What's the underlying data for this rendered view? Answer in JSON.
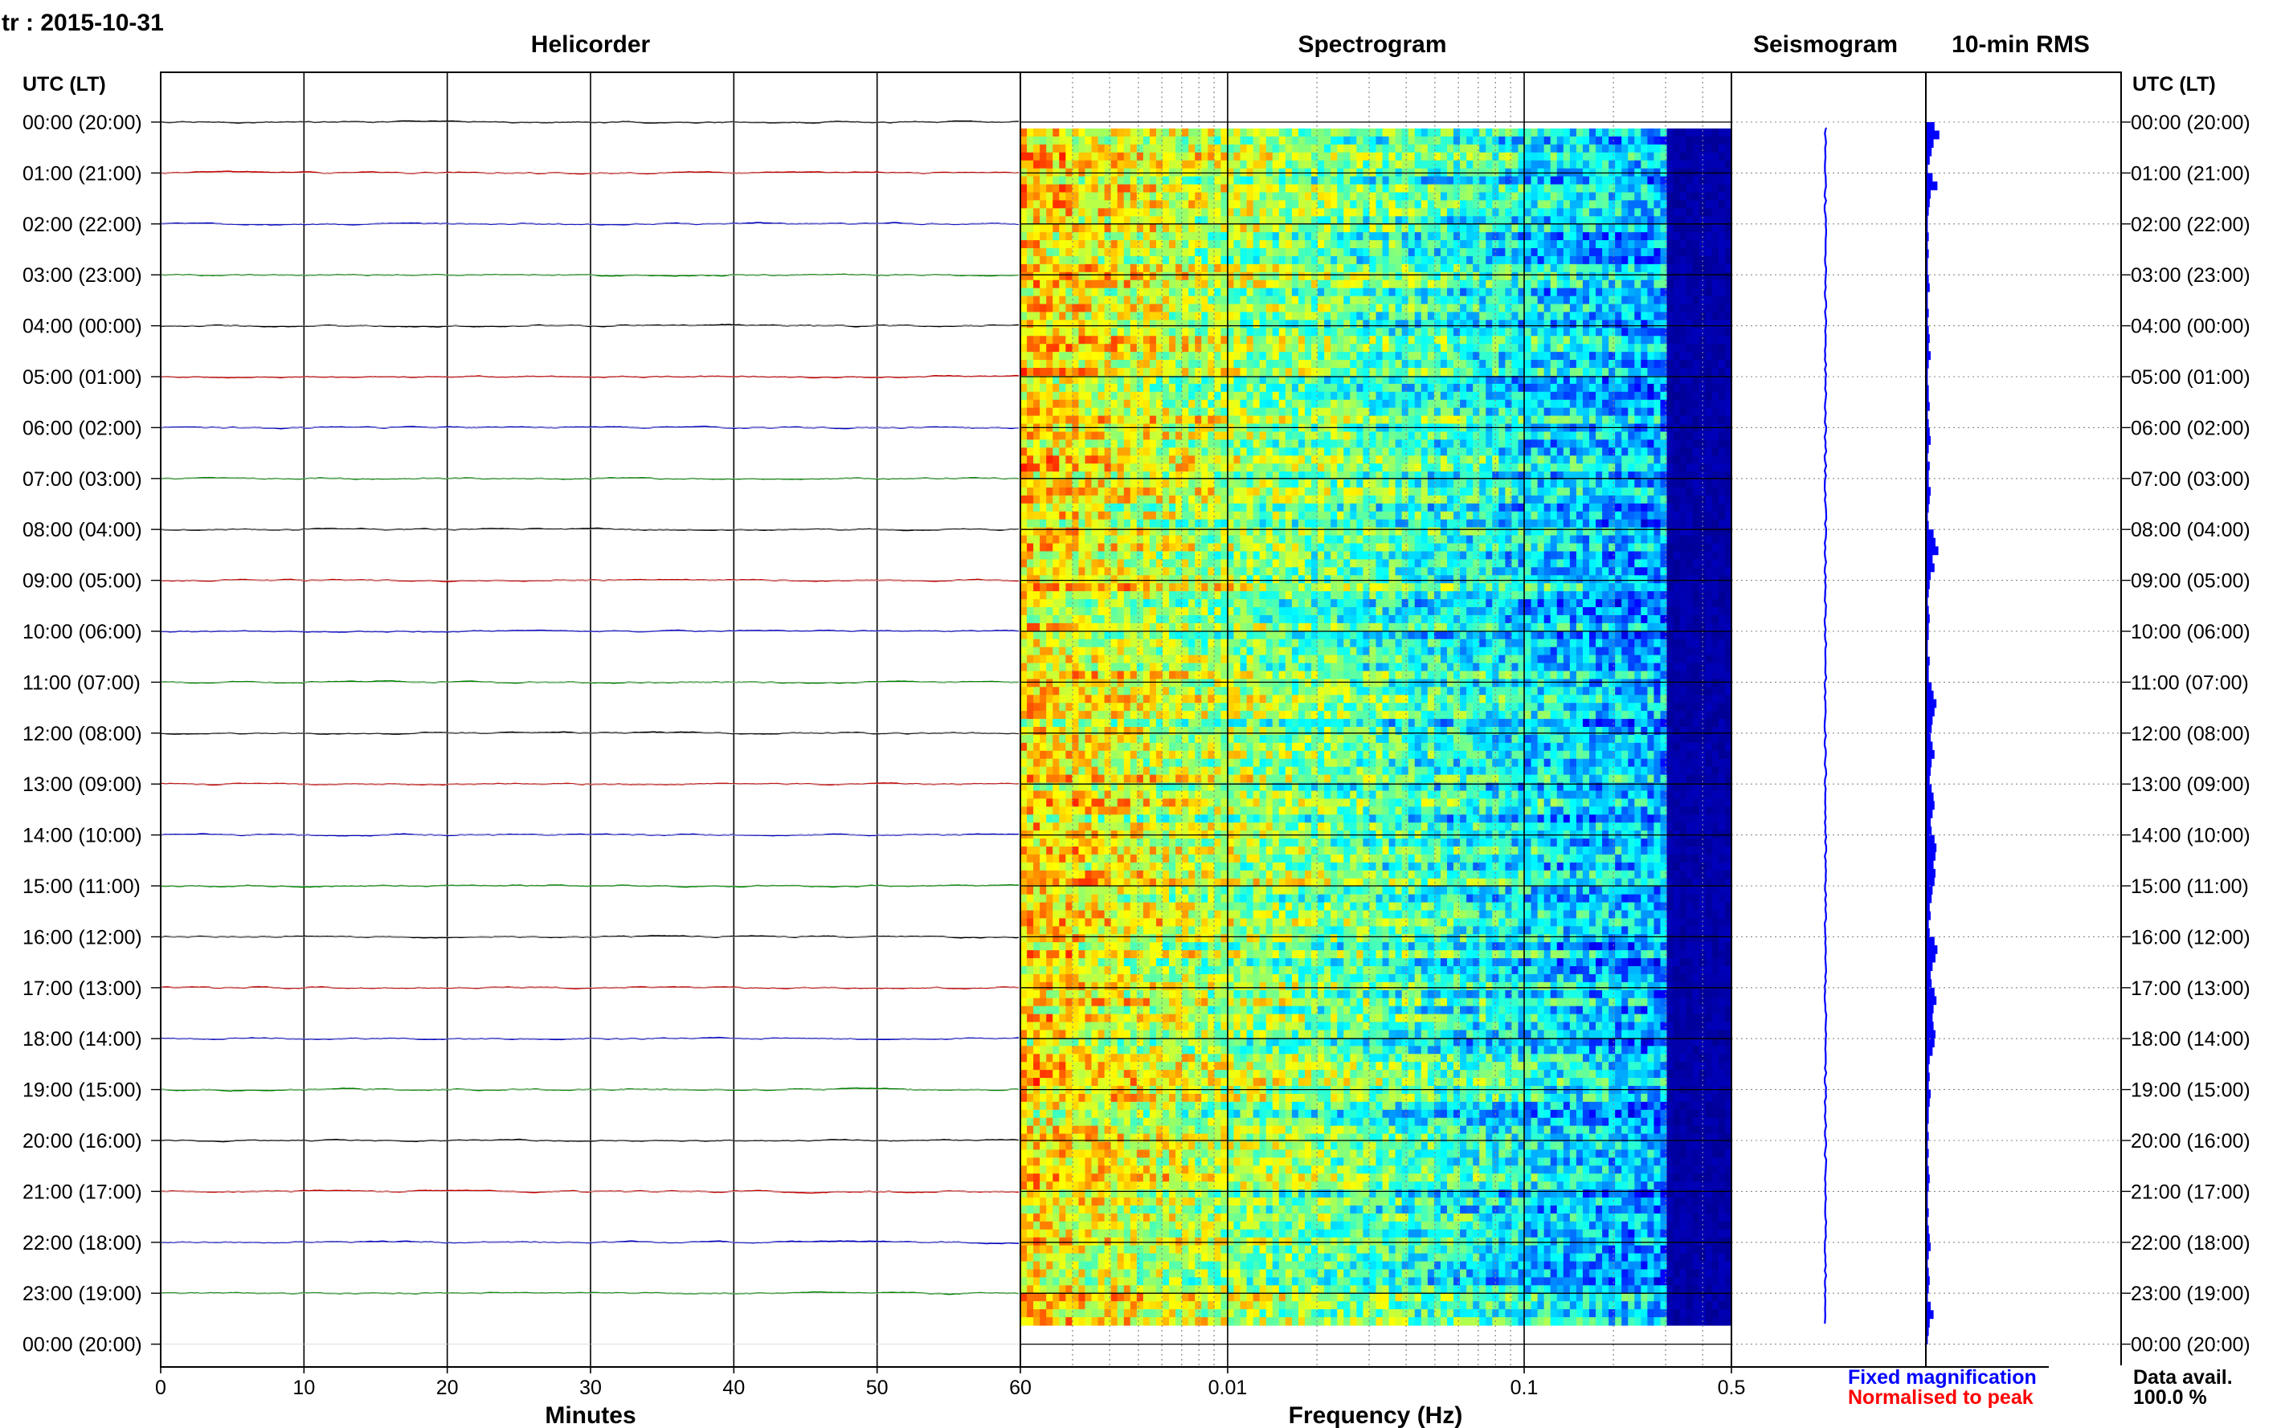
{
  "station_date": "tr : 2015-10-31",
  "panels": {
    "helicorder": "Helicorder",
    "spectrogram": "Spectrogram",
    "seismogram": "Seismogram",
    "rms": "10-min RMS"
  },
  "time_axis_label": "UTC (LT)",
  "row_labels": [
    "00:00 (20:00)",
    "01:00 (21:00)",
    "02:00 (22:00)",
    "03:00 (23:00)",
    "04:00 (00:00)",
    "05:00 (01:00)",
    "06:00 (02:00)",
    "07:00 (03:00)",
    "08:00 (04:00)",
    "09:00 (05:00)",
    "10:00 (06:00)",
    "11:00 (07:00)",
    "12:00 (08:00)",
    "13:00 (09:00)",
    "14:00 (10:00)",
    "15:00 (11:00)",
    "16:00 (12:00)",
    "17:00 (13:00)",
    "18:00 (14:00)",
    "19:00 (15:00)",
    "20:00 (16:00)",
    "21:00 (17:00)",
    "22:00 (18:00)",
    "23:00 (19:00)",
    "00:00 (20:00)"
  ],
  "trace_colors": [
    "#000000",
    "#c00000",
    "#0000c0",
    "#008000"
  ],
  "legend": {
    "fixed": "Fixed magnification",
    "fixed_color": "#0000ff",
    "normalised": "Normalised to peak",
    "normalised_color": "#ff0000"
  },
  "data_avail": {
    "label": "Data avail.",
    "value": "100.0 %"
  },
  "chart_data": [
    {
      "type": "line",
      "title": "Helicorder",
      "xlabel": "Minutes",
      "ylabel": "UTC (LT)",
      "xlim": [
        0,
        60
      ],
      "xticks": [
        "0",
        "10",
        "20",
        "30",
        "40",
        "50",
        "60"
      ],
      "grid": true,
      "rows": 24,
      "series_note": "one trace per hour, colors cycling black, red, blue, green"
    },
    {
      "type": "heatmap",
      "title": "Spectrogram",
      "xlabel": "Frequency (Hz)",
      "xscale": "log",
      "xlim": [
        0.002,
        0.5
      ],
      "xticks": [
        "0.01",
        "0.1",
        "0.5"
      ],
      "y": "time of day, 00:00 to 24:00 UTC",
      "colormap": "jet"
    },
    {
      "type": "line",
      "title": "Seismogram",
      "y": "time of day, 00:00 to 24:00 UTC"
    },
    {
      "type": "bar",
      "title": "10-min RMS",
      "y": "time of day, 00:00 to 24:00 UTC",
      "bins": 144,
      "values": [
        0.9,
        1.4,
        0.8,
        0.6,
        0.4,
        0.2,
        0.7,
        1.2,
        0.5,
        0.4,
        0.3,
        0.2,
        0.2,
        0.3,
        0.2,
        0.3,
        0.2,
        0.2,
        0.3,
        0.4,
        0.2,
        0.2,
        0.3,
        0.2,
        0.3,
        0.4,
        0.3,
        0.5,
        0.3,
        0.2,
        0.2,
        0.3,
        0.3,
        0.4,
        0.2,
        0.3,
        0.4,
        0.5,
        0.3,
        0.2,
        0.4,
        0.3,
        0.3,
        0.5,
        0.4,
        0.3,
        0.2,
        0.3,
        0.8,
        1.0,
        1.3,
        0.7,
        0.9,
        0.5,
        0.4,
        0.3,
        0.2,
        0.3,
        0.4,
        0.3,
        0.3,
        0.2,
        0.2,
        0.4,
        0.3,
        0.3,
        0.6,
        0.8,
        1.1,
        0.9,
        0.7,
        0.6,
        0.5,
        0.7,
        0.9,
        0.6,
        0.5,
        0.4,
        0.6,
        0.8,
        0.9,
        0.7,
        0.5,
        0.6,
        0.9,
        1.1,
        1.0,
        0.8,
        1.0,
        0.9,
        0.7,
        0.6,
        0.4,
        0.5,
        0.3,
        0.4,
        0.9,
        1.2,
        1.0,
        0.7,
        0.5,
        0.6,
        0.9,
        1.1,
        0.8,
        0.7,
        0.8,
        1.0,
        0.9,
        0.7,
        0.4,
        0.3,
        0.4,
        0.3,
        0.5,
        0.4,
        0.3,
        0.3,
        0.2,
        0.3,
        0.2,
        0.3,
        0.2,
        0.3,
        0.4,
        0.3,
        0.2,
        0.2,
        0.3,
        0.2,
        0.3,
        0.4,
        0.5,
        0.3,
        0.2,
        0.3,
        0.4,
        0.3,
        0.2,
        0.5,
        0.8,
        0.4,
        0.3,
        0.2
      ]
    }
  ]
}
